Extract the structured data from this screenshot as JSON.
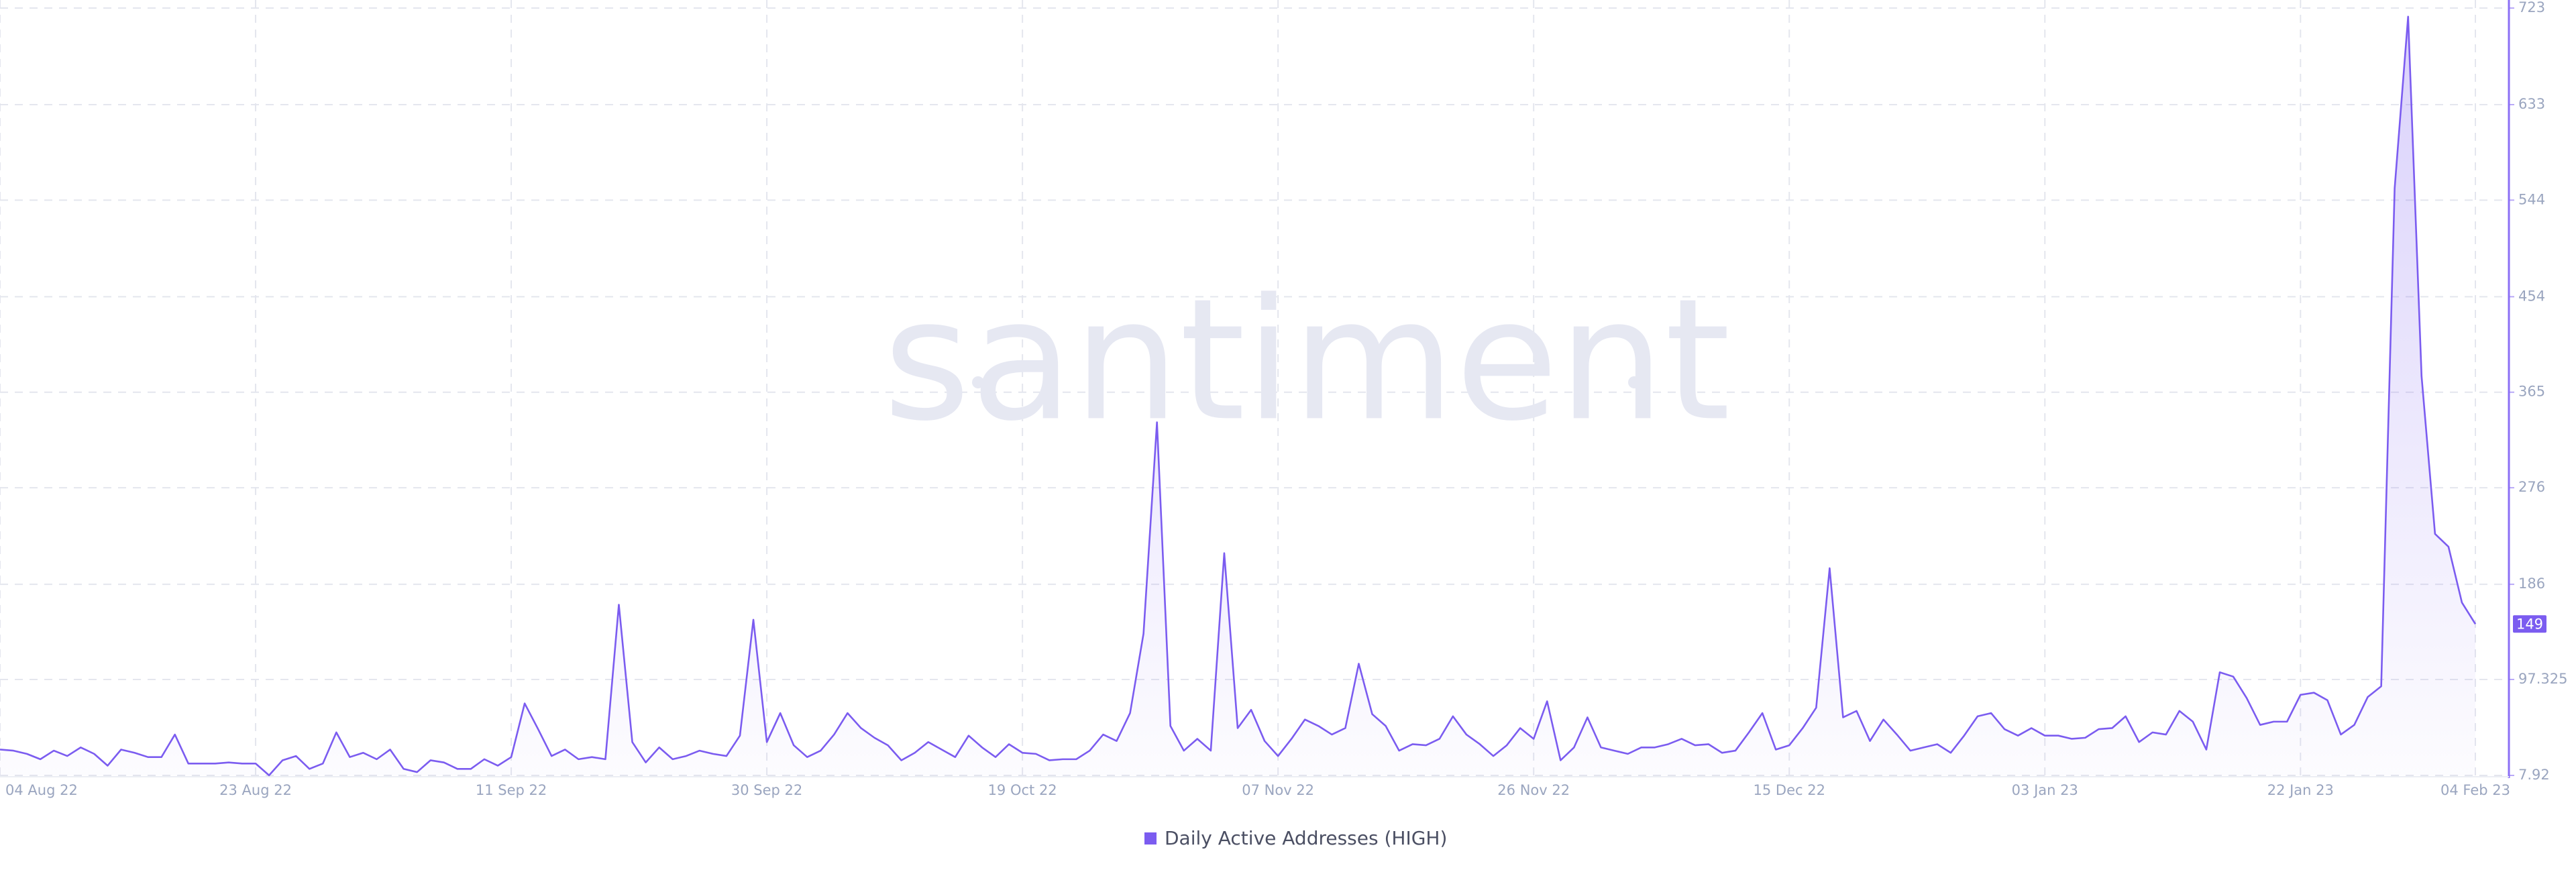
{
  "chart_data": {
    "type": "line",
    "watermark": "santiment",
    "categories": [
      "04 Aug 22",
      null,
      null,
      null,
      null,
      null,
      null,
      null,
      null,
      null,
      null,
      null,
      null,
      null,
      null,
      null,
      null,
      null,
      null,
      "23 Aug 22",
      null,
      null,
      null,
      null,
      null,
      null,
      null,
      null,
      null,
      null,
      null,
      null,
      null,
      null,
      null,
      null,
      null,
      null,
      "11 Sep 22",
      null,
      null,
      null,
      null,
      null,
      null,
      null,
      null,
      null,
      null,
      null,
      null,
      null,
      null,
      null,
      null,
      null,
      null,
      "30 Sep 22",
      null,
      null,
      null,
      null,
      null,
      null,
      null,
      null,
      null,
      null,
      null,
      null,
      null,
      null,
      null,
      null,
      null,
      null,
      "19 Oct 22",
      null,
      null,
      null,
      null,
      null,
      null,
      null,
      null,
      null,
      null,
      null,
      null,
      null,
      null,
      null,
      null,
      null,
      null,
      "07 Nov 22",
      null,
      null,
      null,
      null,
      null,
      null,
      null,
      null,
      null,
      null,
      null,
      null,
      null,
      null,
      null,
      null,
      null,
      null,
      "26 Nov 22",
      null,
      null,
      null,
      null,
      null,
      null,
      null,
      null,
      null,
      null,
      null,
      null,
      null,
      null,
      null,
      null,
      null,
      null,
      "15 Dec 22",
      null,
      null,
      null,
      null,
      null,
      null,
      null,
      null,
      null,
      null,
      null,
      null,
      null,
      null,
      null,
      null,
      null,
      null,
      "03 Jan 23",
      null,
      null,
      null,
      null,
      null,
      null,
      null,
      null,
      null,
      null,
      null,
      null,
      null,
      null,
      null,
      null,
      null,
      null,
      "22 Jan 23",
      null,
      null,
      null,
      null,
      null,
      null,
      null,
      null,
      null,
      null,
      null,
      null,
      "04 Feb 23"
    ],
    "series": [
      {
        "name": "Daily Active Addresses (HIGH)",
        "color": "#7b5cf0",
        "values": [
          32,
          31,
          28,
          23,
          31,
          26,
          34,
          28,
          17,
          32,
          29,
          25,
          25,
          46,
          19,
          19,
          19,
          20,
          19,
          19,
          8,
          22,
          26,
          14,
          19,
          48,
          25,
          29,
          23,
          32,
          14,
          11,
          22,
          20,
          14,
          14,
          23,
          17,
          25,
          75,
          51,
          26,
          32,
          23,
          25,
          23,
          167,
          39,
          20,
          34,
          23,
          26,
          31,
          28,
          26,
          45,
          153,
          39,
          66,
          36,
          25,
          31,
          46,
          66,
          52,
          43,
          36,
          22,
          29,
          39,
          32,
          25,
          45,
          34,
          25,
          37,
          29,
          28,
          22,
          23,
          23,
          31,
          46,
          40,
          66,
          140,
          337,
          54,
          31,
          42,
          31,
          215,
          52,
          69,
          40,
          26,
          42,
          60,
          54,
          46,
          52,
          112,
          65,
          54,
          31,
          37,
          36,
          42,
          63,
          46,
          37,
          26,
          36,
          52,
          42,
          77,
          22,
          34,
          62,
          34,
          31,
          28,
          34,
          34,
          37,
          42,
          36,
          37,
          29,
          31,
          48,
          66,
          32,
          36,
          52,
          71,
          201,
          62,
          68,
          40,
          60,
          46,
          31,
          34,
          37,
          29,
          45,
          63,
          66,
          51,
          45,
          52,
          45,
          45,
          42,
          43,
          51,
          52,
          63,
          39,
          48,
          46,
          68,
          58,
          32,
          104,
          100,
          80,
          55,
          58,
          58,
          83,
          85,
          78,
          46,
          55,
          81,
          91,
          555,
          715,
          380,
          233,
          221,
          169,
          149
        ]
      }
    ],
    "ylim": [
      7.92,
      723
    ],
    "yticks": [
      7.92,
      97.325,
      186,
      276,
      365,
      454,
      544,
      633,
      723
    ],
    "grid": true,
    "axis_side": "right"
  }
}
